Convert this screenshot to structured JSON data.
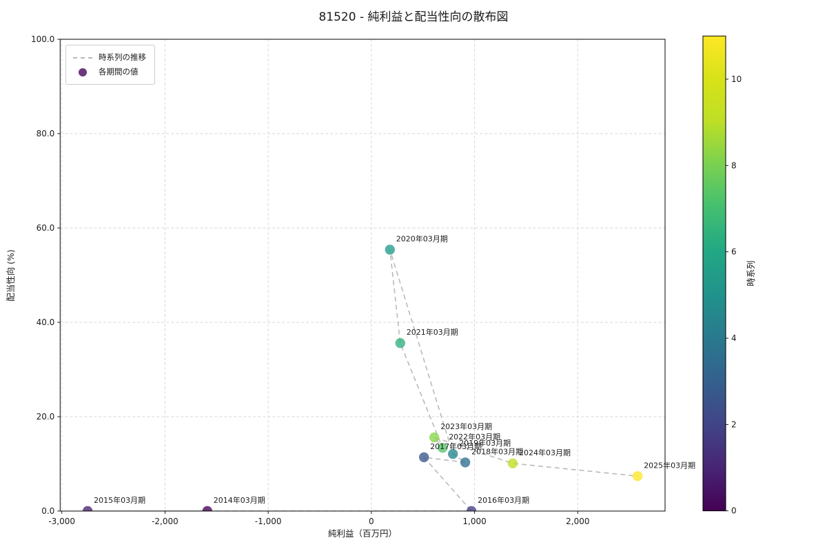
{
  "chart_data": {
    "type": "scatter",
    "title": "81520 - 純利益と配当性向の散布図",
    "xlabel": "純利益（百万円）",
    "ylabel": "配当性向 (%)",
    "series_label": "時系列の推移",
    "points_label": "各期間の値",
    "grid": true,
    "legend_position": "upper left",
    "xlim": [
      -3016,
      2846
    ],
    "ylim": [
      0,
      100
    ],
    "x_ticks": [
      -3000,
      -2000,
      -1000,
      0,
      1000,
      2000
    ],
    "x_tick_labels": [
      "-3,000",
      "-2,000",
      "-1,000",
      "0",
      "1,000",
      "2,000"
    ],
    "y_ticks": [
      0,
      20,
      40,
      60,
      80,
      100
    ],
    "y_tick_labels": [
      "0.0",
      "20.0",
      "40.0",
      "60.0",
      "80.0",
      "100.0"
    ],
    "colorbar": {
      "label": "時系列",
      "vmin": 0,
      "vmax": 11,
      "ticks": [
        0,
        2,
        4,
        6,
        8,
        10
      ],
      "tick_labels": [
        "0",
        "2",
        "4",
        "6",
        "8",
        "10"
      ],
      "gradient": [
        [
          "0%",
          "#440154"
        ],
        [
          "9%",
          "#482475"
        ],
        [
          "18%",
          "#414487"
        ],
        [
          "27%",
          "#355f8d"
        ],
        [
          "36%",
          "#2a788e"
        ],
        [
          "45%",
          "#21918c"
        ],
        [
          "55%",
          "#22a884"
        ],
        [
          "64%",
          "#44bf70"
        ],
        [
          "73%",
          "#7ad151"
        ],
        [
          "82%",
          "#bddf26"
        ],
        [
          "91%",
          "#d8e219"
        ],
        [
          "100%",
          "#fde725"
        ]
      ]
    },
    "points": [
      {
        "label": "2014年03月期",
        "t": 0,
        "x": -1590,
        "y": 0.0,
        "color": "#440154"
      },
      {
        "label": "2015年03月期",
        "t": 1,
        "x": -2750,
        "y": 0.0,
        "color": "#482173"
      },
      {
        "label": "2016年03月期",
        "t": 2,
        "x": 970,
        "y": 0.0,
        "color": "#423e85"
      },
      {
        "label": "2017年03月期",
        "t": 3,
        "x": 510,
        "y": 11.4,
        "color": "#38578c"
      },
      {
        "label": "2018年03月期",
        "t": 4,
        "x": 910,
        "y": 10.3,
        "color": "#2e6e8e"
      },
      {
        "label": "2019年03月期",
        "t": 5,
        "x": 790,
        "y": 12.1,
        "color": "#25858e"
      },
      {
        "label": "2020年03月期",
        "t": 6,
        "x": 180,
        "y": 55.4,
        "color": "#219c89"
      },
      {
        "label": "2021年03月期",
        "t": 7,
        "x": 280,
        "y": 35.6,
        "color": "#2fb07c"
      },
      {
        "label": "2022年03月期",
        "t": 8,
        "x": 690,
        "y": 13.4,
        "color": "#53c568"
      },
      {
        "label": "2023年03月期",
        "t": 9,
        "x": 610,
        "y": 15.6,
        "color": "#86d549"
      },
      {
        "label": "2024年03月期",
        "t": 10,
        "x": 1370,
        "y": 10.1,
        "color": "#c2df23"
      },
      {
        "label": "2025年03月期",
        "t": 11,
        "x": 2580,
        "y": 7.4,
        "color": "#fde725"
      }
    ]
  },
  "colors": {
    "grid": "#d4d4d4",
    "timeline": "#b9b9b9",
    "spine": "#000000",
    "text": "#1a1a1a",
    "legend_border": "#cccccc",
    "legend_marker": "#440154"
  }
}
